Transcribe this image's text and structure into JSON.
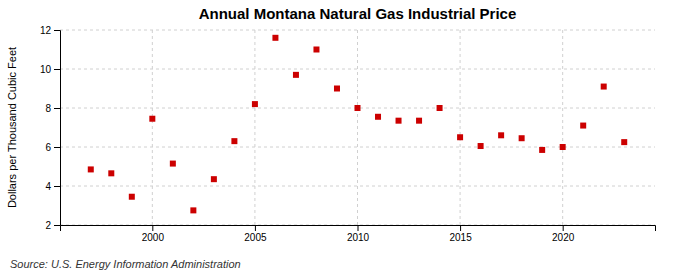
{
  "chart_data": {
    "type": "scatter",
    "title": "Annual Montana Natural Gas Industrial Price",
    "ylabel": "Dollars per Thousand Cubic Feet",
    "source": "Source: U.S. Energy Information Administration",
    "x": [
      1997,
      1998,
      1999,
      2000,
      2001,
      2002,
      2003,
      2004,
      2005,
      2006,
      2007,
      2008,
      2009,
      2010,
      2011,
      2012,
      2013,
      2014,
      2015,
      2016,
      2017,
      2018,
      2019,
      2020,
      2021,
      2022,
      2023
    ],
    "values": [
      4.85,
      4.65,
      3.45,
      7.45,
      5.15,
      2.75,
      4.35,
      6.3,
      8.2,
      11.6,
      9.7,
      11.0,
      9.0,
      8.0,
      7.55,
      7.35,
      7.35,
      8.0,
      6.5,
      6.05,
      6.6,
      6.45,
      5.85,
      6.0,
      7.1,
      9.1,
      6.25
    ],
    "color": "#cc0000",
    "marker": "square",
    "xlim": [
      1995.5,
      2024.5
    ],
    "ylim": [
      2,
      12
    ],
    "xticks": [
      2000,
      2005,
      2010,
      2015,
      2020
    ],
    "yticks": [
      2,
      4,
      6,
      8,
      10,
      12
    ],
    "grid": true
  }
}
